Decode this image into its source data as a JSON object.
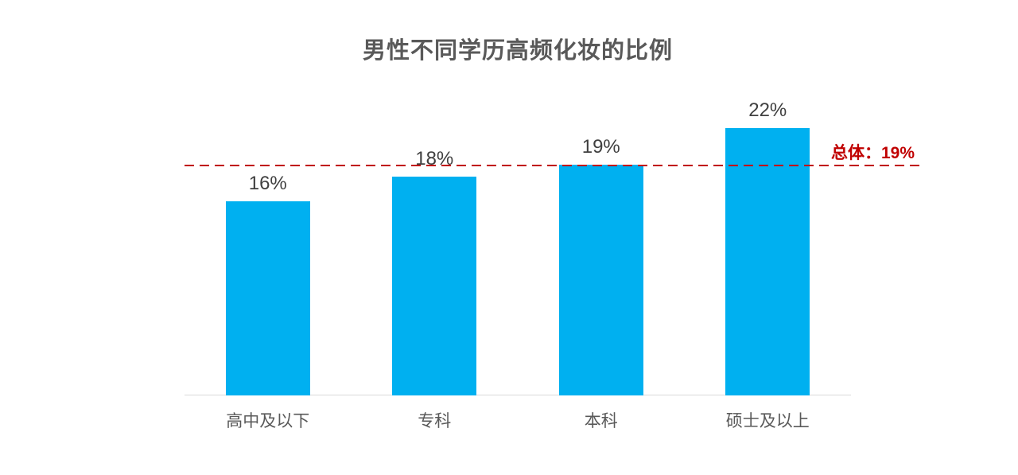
{
  "title": "男性不同学历高频化妆的比例",
  "colors": {
    "bar": "#00b0f0",
    "reference_line": "#c00000",
    "title_text": "#595959",
    "value_label_text": "#404040",
    "tick_label_text": "#595959",
    "axis_line": "#d9d9d9",
    "background": "#ffffff"
  },
  "chart_data": {
    "type": "bar",
    "title": "男性不同学历高频化妆的比例",
    "categories": [
      "高中及以下",
      "专科",
      "本科",
      "硕士及以上"
    ],
    "values": [
      16,
      18,
      19,
      22
    ],
    "value_labels": [
      "16%",
      "18%",
      "19%",
      "22%"
    ],
    "xlabel": "",
    "ylabel": "",
    "ylim": [
      0,
      26
    ],
    "grid": false,
    "legend": "none",
    "y_axis_visible": false,
    "reference_line": {
      "value": 19,
      "label": "总体：19%",
      "style": "dashed",
      "color": "#c00000"
    }
  }
}
